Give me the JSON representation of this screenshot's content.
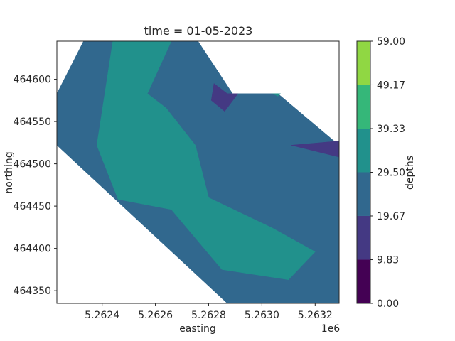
{
  "chart_data": {
    "type": "contourf",
    "title": "time = 01-05-2023",
    "xlabel": "easting",
    "ylabel": "northing",
    "x_offset_label": "1e6",
    "xlim": [
      5.26223,
      5.26329
    ],
    "ylim": [
      464335,
      464645
    ],
    "x_ticks": [
      {
        "value": 5.2624,
        "label": "5.2624"
      },
      {
        "value": 5.2626,
        "label": "5.2626"
      },
      {
        "value": 5.2628,
        "label": "5.2628"
      },
      {
        "value": 5.263,
        "label": "5.2630"
      },
      {
        "value": 5.2632,
        "label": "5.2632"
      }
    ],
    "y_ticks": [
      {
        "value": 464350,
        "label": "464350"
      },
      {
        "value": 464400,
        "label": "464400"
      },
      {
        "value": 464450,
        "label": "464450"
      },
      {
        "value": 464500,
        "label": "464500"
      },
      {
        "value": 464550,
        "label": "464550"
      },
      {
        "value": 464600,
        "label": "464600"
      }
    ],
    "colorbar": {
      "label": "depths",
      "levels": [
        0.0,
        9.83,
        19.67,
        29.5,
        39.33,
        49.17,
        59.0
      ],
      "level_labels": [
        "0.00",
        "9.83",
        "19.67",
        "29.50",
        "39.33",
        "49.17",
        "59.00"
      ],
      "colors": [
        "#440154",
        "#443983",
        "#31688e",
        "#21918c",
        "#35b779",
        "#90d743",
        "#fde725"
      ]
    },
    "regions": [
      {
        "level_index": 2,
        "points": [
          [
            5.26223,
            464583
          ],
          [
            5.26233,
            464645
          ],
          [
            5.26276,
            464645
          ],
          [
            5.26289,
            464583
          ],
          [
            5.26306,
            464583
          ],
          [
            5.26329,
            464522
          ],
          [
            5.26329,
            464335
          ],
          [
            5.26287,
            464335
          ],
          [
            5.26223,
            464522
          ]
        ]
      },
      {
        "level_index": 3,
        "points": [
          [
            5.26244,
            464645
          ],
          [
            5.26266,
            464645
          ],
          [
            5.26257,
            464583
          ],
          [
            5.26264,
            464566
          ],
          [
            5.26275,
            464522
          ],
          [
            5.2628,
            464460
          ],
          [
            5.26304,
            464424
          ],
          [
            5.2632,
            464396
          ],
          [
            5.2631,
            464363
          ],
          [
            5.26285,
            464375
          ],
          [
            5.26266,
            464446
          ],
          [
            5.26246,
            464458
          ],
          [
            5.26238,
            464522
          ],
          [
            5.26241,
            464583
          ]
        ]
      },
      {
        "level_index": 1,
        "points": [
          [
            5.26282,
            464595
          ],
          [
            5.26287,
            464583
          ],
          [
            5.26291,
            464583
          ],
          [
            5.26286,
            464562
          ],
          [
            5.26281,
            464575
          ]
        ]
      },
      {
        "level_index": 1,
        "points": [
          [
            5.26311,
            464522
          ],
          [
            5.26329,
            464527
          ],
          [
            5.26329,
            464508
          ]
        ]
      },
      {
        "level_index": 3,
        "points": [
          [
            5.26304,
            464583
          ],
          [
            5.26307,
            464583
          ],
          [
            5.26306,
            464580
          ]
        ]
      }
    ]
  }
}
